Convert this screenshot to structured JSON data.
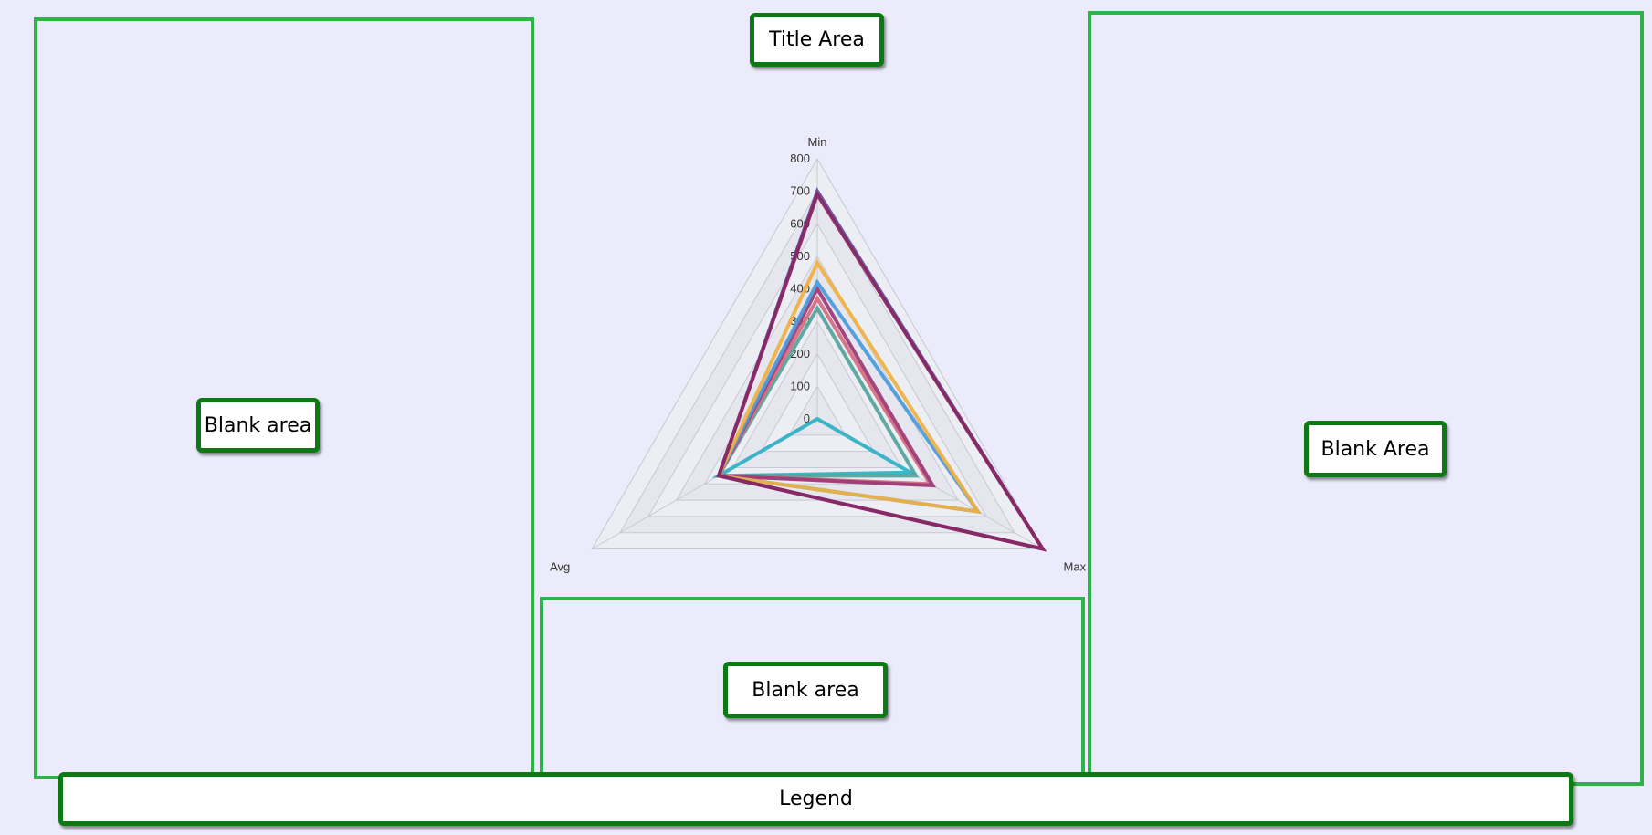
{
  "annotations": {
    "title_area": "Title Area",
    "blank_left": "Blank area",
    "blank_right": "Blank Area",
    "blank_bottom": "Blank area",
    "legend": "Legend"
  },
  "chart_data": {
    "type": "radar",
    "axes": [
      "Min",
      "Max",
      "Avg"
    ],
    "rlim": [
      0,
      800
    ],
    "ticks": [
      0,
      100,
      200,
      300,
      400,
      500,
      600,
      700,
      800
    ],
    "grid": true,
    "series": [
      {
        "color": "#2fb0c4",
        "values": [
          0,
          330,
          350
        ]
      },
      {
        "color": "#52a39b",
        "values": [
          340,
          350,
          350
        ]
      },
      {
        "color": "#d56b7e",
        "values": [
          370,
          400,
          350
        ]
      },
      {
        "color": "#9b3a76",
        "values": [
          400,
          410,
          350
        ]
      },
      {
        "color": "#4a9bdb",
        "values": [
          420,
          570,
          350
        ]
      },
      {
        "color": "#f0b040",
        "values": [
          480,
          570,
          350
        ]
      },
      {
        "color": "#5a4ea0",
        "values": [
          700,
          800,
          350
        ]
      },
      {
        "color": "#8b2560",
        "values": [
          690,
          800,
          350
        ]
      }
    ]
  }
}
